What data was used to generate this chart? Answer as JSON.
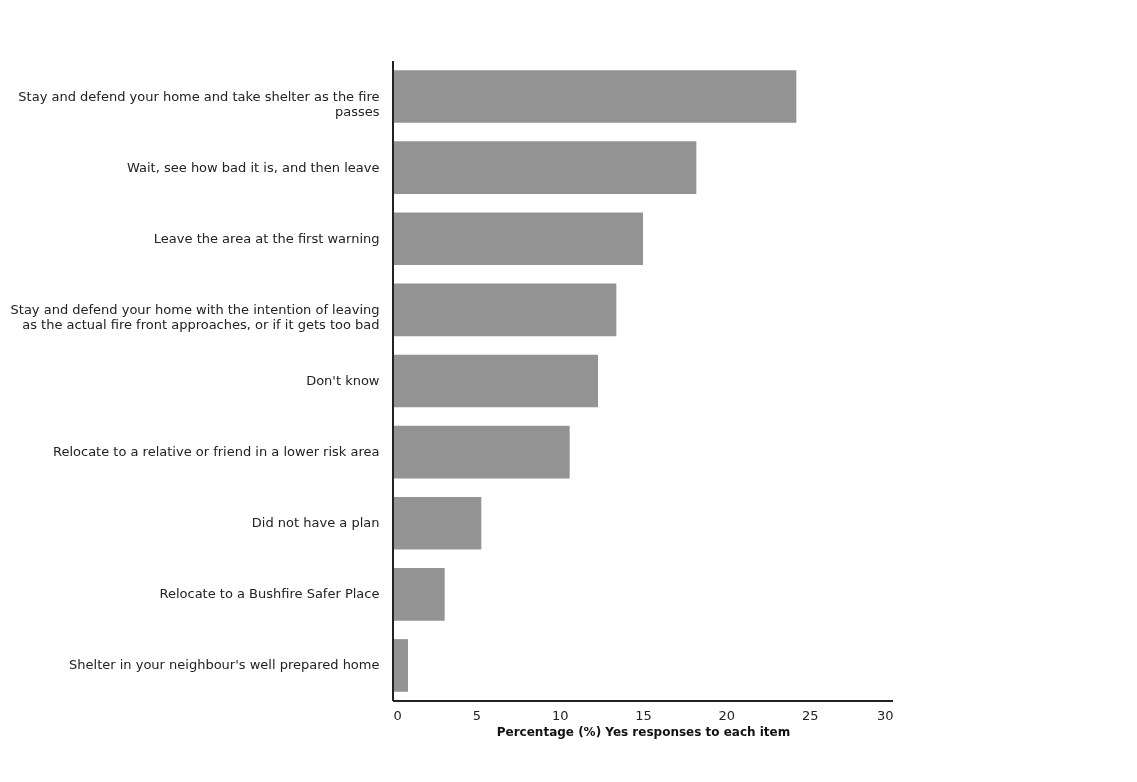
{
  "chart_data": {
    "type": "bar",
    "orientation": "horizontal",
    "xlabel": "Percentage (%) Yes responses to each item",
    "categories": [
      "Stay and defend your home and take shelter as the fire passes",
      "Wait, see how bad it is, and then leave",
      "Leave the area at the first warning",
      "Stay and defend your home with the intention of leaving as the actual fire front approaches, or if it gets too bad",
      "Don't know",
      "Relocate to a relative or friend in a lower risk area",
      "Did not have a plan",
      "Relocate to a Bushfire Safer Place",
      "Shelter in your neighbour's well prepared home"
    ],
    "values": [
      24.2,
      18.2,
      15.0,
      13.4,
      12.3,
      10.6,
      5.3,
      3.1,
      0.9
    ],
    "color": "#939393",
    "xlim": [
      0,
      30
    ],
    "xticks": [
      0,
      5,
      10,
      15,
      20,
      25,
      30
    ],
    "grid": false
  }
}
